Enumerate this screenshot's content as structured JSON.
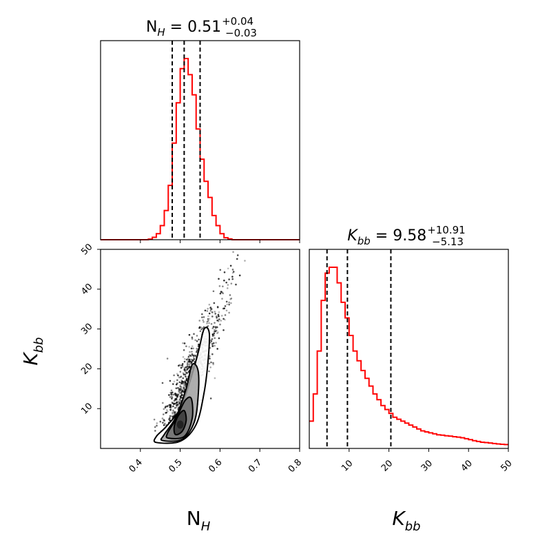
{
  "chart_data": [
    {
      "type": "histogram",
      "panel": "marginal-nh",
      "title": {
        "base": "N",
        "sub": "H",
        "eq": " = 0.51",
        "upper": "+0.04",
        "lower": "−0.03"
      },
      "xlim": [
        0.3,
        0.8
      ],
      "x_ticks": [
        "0.4",
        "0.5",
        "0.6",
        "0.7",
        "0.8"
      ],
      "quantiles": [
        0.48,
        0.51,
        0.55
      ],
      "line_color": "#ff0000",
      "bins": [
        0.3,
        0.31,
        0.32,
        0.33,
        0.34,
        0.35,
        0.36,
        0.37,
        0.38,
        0.39,
        0.4,
        0.41,
        0.42,
        0.43,
        0.44,
        0.45,
        0.46,
        0.47,
        0.48,
        0.49,
        0.5,
        0.51,
        0.52,
        0.53,
        0.54,
        0.55,
        0.56,
        0.57,
        0.58,
        0.59,
        0.6,
        0.61,
        0.62,
        0.63,
        0.64,
        0.65,
        0.66,
        0.67,
        0.68,
        0.69,
        0.7,
        0.71,
        0.72,
        0.73,
        0.74,
        0.75,
        0.76,
        0.77,
        0.78,
        0.79,
        0.8
      ],
      "counts": [
        0,
        0,
        0,
        0,
        0,
        0,
        0,
        0,
        0,
        0,
        0,
        0,
        0.3,
        1.2,
        3.0,
        7.0,
        14.5,
        27.0,
        48.0,
        68.0,
        85.0,
        90.0,
        82.0,
        72.0,
        55.0,
        40.0,
        29.0,
        21.0,
        12.0,
        7.0,
        3.0,
        1.0,
        0.4,
        0,
        0,
        0,
        0,
        0,
        0,
        0,
        0,
        0,
        0,
        0,
        0,
        0,
        0,
        0,
        0,
        0
      ]
    },
    {
      "type": "scatter-contour",
      "panel": "joint",
      "xlim": [
        0.3,
        0.8
      ],
      "ylim": [
        0,
        50
      ],
      "x_ticks": [
        "0.4",
        "0.5",
        "0.6",
        "0.7",
        "0.8"
      ],
      "y_ticks": [
        "10",
        "20",
        "30",
        "40",
        "50"
      ],
      "xlabel": {
        "base": "N",
        "sub": "H"
      },
      "ylabel": {
        "base": "K",
        "sub": "bb"
      },
      "density_peak": [
        0.5,
        6.0
      ],
      "contours": [
        [
          [
            0.488,
            3.5
          ],
          [
            0.505,
            4.3
          ],
          [
            0.515,
            7.0
          ],
          [
            0.51,
            9.5
          ],
          [
            0.495,
            8.2
          ],
          [
            0.485,
            5.5
          ]
        ],
        [
          [
            0.47,
            2.6
          ],
          [
            0.51,
            3.0
          ],
          [
            0.53,
            7.5
          ],
          [
            0.528,
            12.5
          ],
          [
            0.512,
            12.0
          ],
          [
            0.49,
            7.5
          ],
          [
            0.468,
            3.8
          ]
        ],
        [
          [
            0.455,
            2.0
          ],
          [
            0.505,
            2.3
          ],
          [
            0.535,
            6.5
          ],
          [
            0.545,
            13.0
          ],
          [
            0.545,
            19.5
          ],
          [
            0.53,
            21.0
          ],
          [
            0.515,
            15.0
          ],
          [
            0.49,
            8.0
          ],
          [
            0.46,
            3.5
          ]
        ],
        [
          [
            0.44,
            1.5
          ],
          [
            0.5,
            1.8
          ],
          [
            0.54,
            6.0
          ],
          [
            0.56,
            14.0
          ],
          [
            0.57,
            22.0
          ],
          [
            0.573,
            29.0
          ],
          [
            0.56,
            30.0
          ],
          [
            0.545,
            24.0
          ],
          [
            0.525,
            17.0
          ],
          [
            0.5,
            10.0
          ],
          [
            0.465,
            5.5
          ],
          [
            0.44,
            3.0
          ]
        ]
      ]
    },
    {
      "type": "histogram",
      "panel": "marginal-kbb",
      "title": {
        "base": "K",
        "sub": "bb",
        "eq": " = 9.58",
        "upper": "+10.91",
        "lower": "−5.13"
      },
      "xlim": [
        0,
        50
      ],
      "x_ticks": [
        "10",
        "20",
        "30",
        "40",
        "50"
      ],
      "xlabel": {
        "base": "K",
        "sub": "bb"
      },
      "quantiles": [
        4.45,
        9.58,
        20.49
      ],
      "line_color": "#ff0000",
      "bins": [
        0,
        1,
        2,
        3,
        4,
        5,
        6,
        7,
        8,
        9,
        10,
        11,
        12,
        13,
        14,
        15,
        16,
        17,
        18,
        19,
        20,
        21,
        22,
        23,
        24,
        25,
        26,
        27,
        28,
        29,
        30,
        31,
        32,
        33,
        34,
        35,
        36,
        37,
        38,
        39,
        40,
        41,
        42,
        43,
        44,
        45,
        46,
        47,
        48,
        49,
        50
      ],
      "counts": [
        14,
        28,
        50,
        76,
        90,
        93,
        93,
        85,
        75,
        67,
        58,
        50,
        45,
        40,
        36,
        32,
        28,
        25,
        22,
        20,
        18,
        16,
        15,
        14,
        13,
        12,
        11,
        10,
        9,
        8.5,
        8,
        7.5,
        7,
        6.8,
        6.5,
        6.3,
        6,
        5.8,
        5.5,
        5,
        4.5,
        4,
        3.6,
        3.2,
        3,
        2.8,
        2.5,
        2.3,
        2.1,
        2
      ]
    }
  ]
}
